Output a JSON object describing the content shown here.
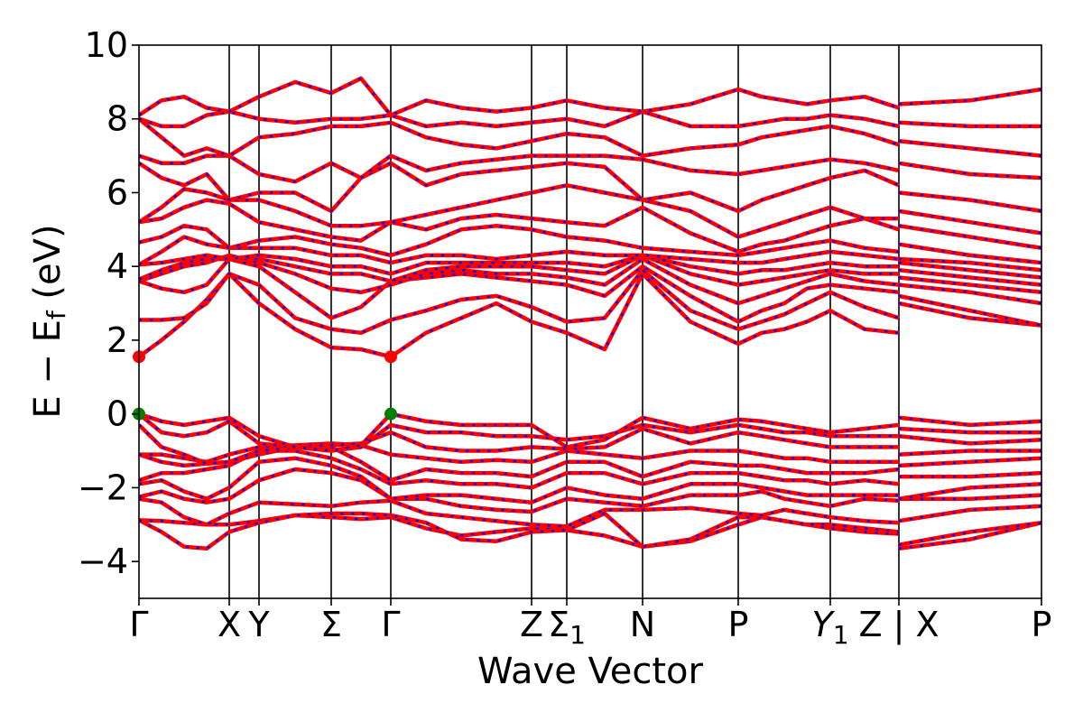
{
  "chart_data": {
    "type": "line",
    "xlabel": "Wave Vector",
    "ylabel": "E − E",
    "ylabel_sub": "f",
    "ylabel_unit": " (eV)",
    "ylim": [
      -5,
      10
    ],
    "yticks": [
      {
        "value": -4,
        "label": "−4"
      },
      {
        "value": -2,
        "label": "−2"
      },
      {
        "value": 0,
        "label": "0"
      },
      {
        "value": 2,
        "label": "2"
      },
      {
        "value": 4,
        "label": "4"
      },
      {
        "value": 6,
        "label": "6"
      },
      {
        "value": 8,
        "label": "8"
      },
      {
        "value": 10,
        "label": "10"
      }
    ],
    "xlim": [
      0,
      10
    ],
    "kpoints": [
      {
        "pos": 0.0,
        "label": "Γ",
        "sub": ""
      },
      {
        "pos": 1.0,
        "label": "X",
        "sub": ""
      },
      {
        "pos": 1.33,
        "label": "Y",
        "sub": ""
      },
      {
        "pos": 2.13,
        "label": "Σ",
        "sub": ""
      },
      {
        "pos": 2.79,
        "label": "Γ",
        "sub": ""
      },
      {
        "pos": 4.35,
        "label": "Z",
        "sub": ""
      },
      {
        "pos": 4.74,
        "label": "Σ",
        "sub": "1"
      },
      {
        "pos": 5.58,
        "label": "N",
        "sub": ""
      },
      {
        "pos": 6.64,
        "label": "P",
        "sub": ""
      },
      {
        "pos": 7.66,
        "label": "Y",
        "sub": "1",
        "italic": true
      },
      {
        "pos": 8.42,
        "label": "Z | X",
        "sub": ""
      },
      {
        "pos": 9.21,
        "label": "X",
        "sub": "",
        "hide": true
      },
      {
        "pos": 10.0,
        "label": "P",
        "sub": ""
      }
    ],
    "vertical_lines": [
      1.0,
      1.33,
      2.13,
      2.79,
      4.35,
      4.74,
      5.58,
      6.64,
      7.66,
      8.42
    ],
    "break_at": 8.42,
    "series": [
      {
        "style": "red-solid"
      },
      {
        "style": "blue-dashed"
      }
    ],
    "markers": [
      {
        "x": 0.0,
        "y": 1.55,
        "color": "#ff0000"
      },
      {
        "x": 2.79,
        "y": 1.55,
        "color": "#ff0000"
      },
      {
        "x": 0.0,
        "y": 0.0,
        "color": "#008000"
      },
      {
        "x": 2.79,
        "y": 0.0,
        "color": "#008000"
      }
    ],
    "bands": [
      [
        -2.88,
        -2.9,
        -2.95,
        -3.0,
        -3.0,
        -2.9,
        -2.75,
        -2.8,
        -2.85,
        -2.8,
        -3.1,
        -3.3,
        -3.2,
        -3.1,
        -3.15,
        -3.3,
        -3.6,
        -3.45,
        -3.0,
        -2.8,
        -2.9,
        -3.0,
        -3.1,
        -3.2,
        -3.25,
        -3.65,
        -3.4,
        -2.95
      ],
      [
        -2.88,
        -3.2,
        -3.6,
        -3.65,
        -3.2,
        -2.95,
        -2.75,
        -2.7,
        -2.7,
        -2.75,
        -2.95,
        -3.4,
        -3.45,
        -3.2,
        -3.15,
        -2.7,
        -3.6,
        -3.4,
        -2.8,
        -2.8,
        -2.9,
        -3.0,
        -3.0,
        -3.1,
        -3.2,
        -3.55,
        -3.2,
        -2.95
      ],
      [
        -2.3,
        -2.4,
        -2.8,
        -3.0,
        -2.7,
        -2.4,
        -2.45,
        -2.5,
        -2.4,
        -2.35,
        -2.7,
        -2.8,
        -2.9,
        -3.0,
        -3.05,
        -2.6,
        -2.6,
        -2.55,
        -2.7,
        -2.75,
        -2.6,
        -2.7,
        -2.8,
        -2.9,
        -2.95,
        -2.9,
        -2.6,
        -2.5
      ],
      [
        -2.25,
        -2.1,
        -2.3,
        -2.4,
        -2.3,
        -1.8,
        -1.5,
        -1.6,
        -1.8,
        -2.3,
        -2.3,
        -2.5,
        -2.6,
        -2.65,
        -2.3,
        -2.4,
        -2.5,
        -2.2,
        -2.2,
        -2.1,
        -2.3,
        -2.4,
        -2.5,
        -2.3,
        -2.35,
        -2.3,
        -2.3,
        -2.2
      ],
      [
        -1.9,
        -1.8,
        -2.1,
        -2.3,
        -2.0,
        -1.3,
        -1.2,
        -1.4,
        -1.7,
        -2.3,
        -2.2,
        -2.2,
        -2.3,
        -2.4,
        -2.0,
        -2.2,
        -2.3,
        -1.9,
        -1.9,
        -2.0,
        -2.1,
        -2.2,
        -2.2,
        -2.2,
        -2.2,
        -2.3,
        -2.0,
        -1.9
      ],
      [
        -1.8,
        -1.6,
        -1.6,
        -1.5,
        -1.4,
        -1.0,
        -1.0,
        -1.2,
        -1.5,
        -1.9,
        -1.8,
        -1.9,
        -1.9,
        -2.0,
        -1.6,
        -1.6,
        -1.9,
        -1.6,
        -1.6,
        -1.7,
        -1.8,
        -1.8,
        -1.9,
        -1.8,
        -1.9,
        -1.7,
        -1.7,
        -1.6
      ],
      [
        -1.1,
        -1.3,
        -1.4,
        -1.35,
        -1.3,
        -1.1,
        -0.9,
        -0.9,
        -1.3,
        -1.8,
        -1.5,
        -1.6,
        -1.6,
        -1.7,
        -1.3,
        -1.3,
        -1.7,
        -1.3,
        -1.4,
        -1.4,
        -1.5,
        -1.6,
        -1.6,
        -1.6,
        -1.5,
        -1.4,
        -1.3,
        -1.2
      ],
      [
        -1.1,
        -1.1,
        -1.2,
        -1.3,
        -1.1,
        -0.9,
        -0.85,
        -0.8,
        -0.85,
        -1.1,
        -1.2,
        -1.3,
        -1.25,
        -1.3,
        -1.0,
        -1.1,
        -1.2,
        -1.0,
        -1.0,
        -1.1,
        -1.2,
        -1.2,
        -1.3,
        -1.3,
        -1.3,
        -1.1,
        -1.0,
        -1.0
      ],
      [
        -0.3,
        -0.9,
        -1.1,
        -1.35,
        -1.3,
        -1.0,
        -0.9,
        -0.85,
        -0.8,
        -0.5,
        -0.9,
        -1.0,
        -1.0,
        -0.9,
        -0.95,
        -0.9,
        -0.4,
        -0.8,
        -0.5,
        -0.6,
        -0.7,
        -0.8,
        -0.9,
        -0.9,
        -0.9,
        -0.6,
        -0.8,
        -0.7
      ],
      [
        0.0,
        -0.5,
        -0.6,
        -0.5,
        -0.2,
        -0.8,
        -0.9,
        -1.0,
        -0.9,
        -0.3,
        -0.5,
        -0.5,
        -0.6,
        -0.6,
        -0.7,
        -0.6,
        -0.3,
        -0.5,
        -0.3,
        -0.4,
        -0.5,
        -0.5,
        -0.6,
        -0.6,
        -0.6,
        -0.4,
        -0.5,
        -0.5
      ],
      [
        0.0,
        -0.2,
        -0.3,
        -0.2,
        -0.1,
        -0.6,
        -0.9,
        -1.0,
        -0.85,
        0.0,
        -0.2,
        -0.3,
        -0.3,
        -0.3,
        -0.9,
        -0.7,
        -0.1,
        -0.4,
        -0.15,
        -0.2,
        -0.3,
        -0.4,
        -0.5,
        -0.4,
        -0.3,
        -0.1,
        -0.3,
        -0.2
      ],
      [
        1.55,
        2.0,
        2.5,
        3.1,
        3.8,
        3.0,
        2.3,
        1.8,
        1.75,
        1.55,
        2.2,
        2.6,
        3.0,
        2.5,
        2.2,
        1.75,
        3.8,
        2.5,
        1.9,
        2.2,
        2.3,
        2.5,
        2.8,
        2.3,
        2.2,
        3.0,
        2.6,
        2.4
      ],
      [
        2.55,
        2.55,
        2.6,
        3.0,
        3.8,
        3.5,
        2.6,
        2.3,
        2.2,
        2.55,
        2.8,
        3.1,
        3.2,
        2.9,
        2.5,
        2.6,
        3.9,
        2.8,
        2.3,
        2.5,
        2.7,
        3.0,
        3.3,
        2.9,
        2.6,
        3.2,
        2.8,
        2.4
      ],
      [
        3.6,
        3.4,
        3.3,
        3.5,
        4.2,
        4.0,
        3.3,
        2.6,
        2.9,
        3.6,
        3.7,
        3.8,
        3.7,
        3.6,
        3.5,
        3.2,
        4.0,
        3.2,
        2.5,
        2.8,
        3.0,
        3.4,
        3.5,
        3.4,
        3.3,
        3.5,
        3.3,
        3.0
      ],
      [
        3.6,
        3.8,
        4.0,
        4.1,
        4.3,
        4.1,
        3.8,
        3.4,
        3.3,
        3.5,
        3.8,
        3.9,
        3.8,
        3.8,
        3.7,
        3.5,
        4.2,
        3.5,
        3.0,
        3.2,
        3.4,
        3.6,
        3.8,
        3.6,
        3.5,
        3.7,
        3.5,
        3.3
      ],
      [
        3.65,
        3.9,
        4.1,
        4.2,
        4.2,
        4.2,
        4.0,
        3.8,
        3.8,
        3.6,
        3.9,
        4.0,
        4.0,
        4.0,
        3.9,
        3.8,
        4.3,
        3.8,
        3.5,
        3.6,
        3.7,
        3.8,
        3.9,
        3.8,
        3.8,
        3.9,
        3.7,
        3.5
      ],
      [
        4.05,
        4.1,
        4.2,
        4.3,
        4.2,
        4.3,
        4.2,
        4.0,
        4.0,
        3.8,
        4.1,
        4.1,
        4.1,
        4.1,
        4.1,
        4.0,
        4.3,
        4.0,
        3.8,
        3.9,
        3.9,
        4.0,
        4.1,
        4.0,
        4.0,
        4.1,
        3.9,
        3.7
      ],
      [
        4.05,
        4.4,
        4.8,
        4.6,
        4.5,
        4.5,
        4.5,
        4.3,
        4.3,
        4.1,
        4.3,
        4.3,
        4.2,
        4.3,
        4.4,
        4.3,
        4.3,
        4.2,
        4.1,
        4.1,
        4.2,
        4.3,
        4.4,
        4.3,
        4.2,
        4.2,
        4.1,
        3.9
      ],
      [
        4.65,
        4.8,
        5.1,
        5.0,
        4.5,
        4.7,
        4.8,
        4.6,
        4.5,
        4.3,
        4.6,
        5.0,
        5.1,
        5.0,
        4.8,
        4.7,
        4.5,
        4.4,
        4.3,
        4.4,
        4.5,
        4.6,
        4.7,
        4.5,
        4.4,
        4.6,
        4.3,
        4.1
      ],
      [
        5.2,
        5.3,
        5.6,
        5.8,
        5.7,
        5.2,
        5.0,
        4.8,
        4.7,
        5.2,
        5.0,
        5.3,
        5.4,
        5.3,
        5.2,
        5.1,
        5.6,
        4.9,
        4.4,
        4.6,
        4.7,
        4.9,
        5.1,
        5.3,
        5.0,
        5.1,
        4.8,
        4.5
      ],
      [
        5.2,
        5.6,
        6.1,
        6.0,
        5.8,
        5.8,
        5.5,
        5.1,
        5.1,
        5.2,
        5.4,
        5.6,
        5.8,
        6.0,
        6.2,
        6.0,
        5.8,
        5.5,
        4.8,
        5.0,
        5.2,
        5.4,
        5.6,
        5.3,
        5.3,
        5.5,
        5.2,
        4.9
      ],
      [
        6.8,
        6.4,
        6.2,
        6.5,
        5.8,
        6.0,
        6.0,
        5.5,
        6.4,
        6.8,
        6.2,
        6.5,
        6.6,
        6.7,
        6.8,
        6.7,
        5.8,
        6.0,
        5.5,
        5.8,
        6.0,
        6.2,
        6.4,
        6.6,
        6.2,
        6.0,
        5.8,
        5.5
      ],
      [
        7.0,
        6.8,
        6.8,
        7.0,
        7.0,
        6.5,
        6.3,
        6.8,
        6.4,
        7.0,
        6.6,
        6.8,
        6.9,
        7.0,
        7.0,
        7.0,
        6.9,
        6.6,
        6.5,
        6.6,
        6.7,
        6.8,
        6.9,
        6.8,
        6.6,
        6.8,
        6.5,
        6.4
      ],
      [
        8.0,
        7.5,
        7.0,
        7.2,
        7.0,
        7.5,
        7.6,
        7.8,
        7.8,
        7.9,
        7.5,
        7.3,
        7.2,
        7.4,
        7.6,
        7.5,
        7.0,
        7.2,
        7.3,
        7.5,
        7.6,
        7.7,
        7.8,
        7.6,
        7.3,
        7.4,
        7.2,
        7.0
      ],
      [
        8.0,
        7.8,
        7.8,
        8.1,
        8.2,
        8.0,
        7.9,
        8.0,
        8.0,
        8.1,
        7.8,
        7.9,
        7.8,
        7.9,
        8.0,
        7.8,
        8.2,
        7.8,
        7.8,
        7.9,
        8.0,
        8.0,
        8.1,
        8.0,
        7.8,
        7.9,
        7.8,
        7.8
      ],
      [
        8.1,
        8.5,
        8.6,
        8.3,
        8.2,
        8.6,
        9.0,
        8.7,
        9.1,
        8.1,
        8.5,
        8.3,
        8.2,
        8.3,
        8.5,
        8.3,
        8.2,
        8.4,
        8.8,
        8.6,
        8.5,
        8.4,
        8.5,
        8.6,
        8.3,
        8.4,
        8.5,
        8.8
      ]
    ],
    "band_x": [
      0.0,
      0.25,
      0.5,
      0.75,
      1.0,
      1.33,
      1.73,
      2.13,
      2.46,
      2.79,
      3.18,
      3.57,
      3.96,
      4.35,
      4.74,
      5.16,
      5.58,
      6.11,
      6.64,
      6.9,
      7.15,
      7.4,
      7.66,
      8.04,
      8.42,
      8.42,
      9.21,
      10.0
    ]
  }
}
